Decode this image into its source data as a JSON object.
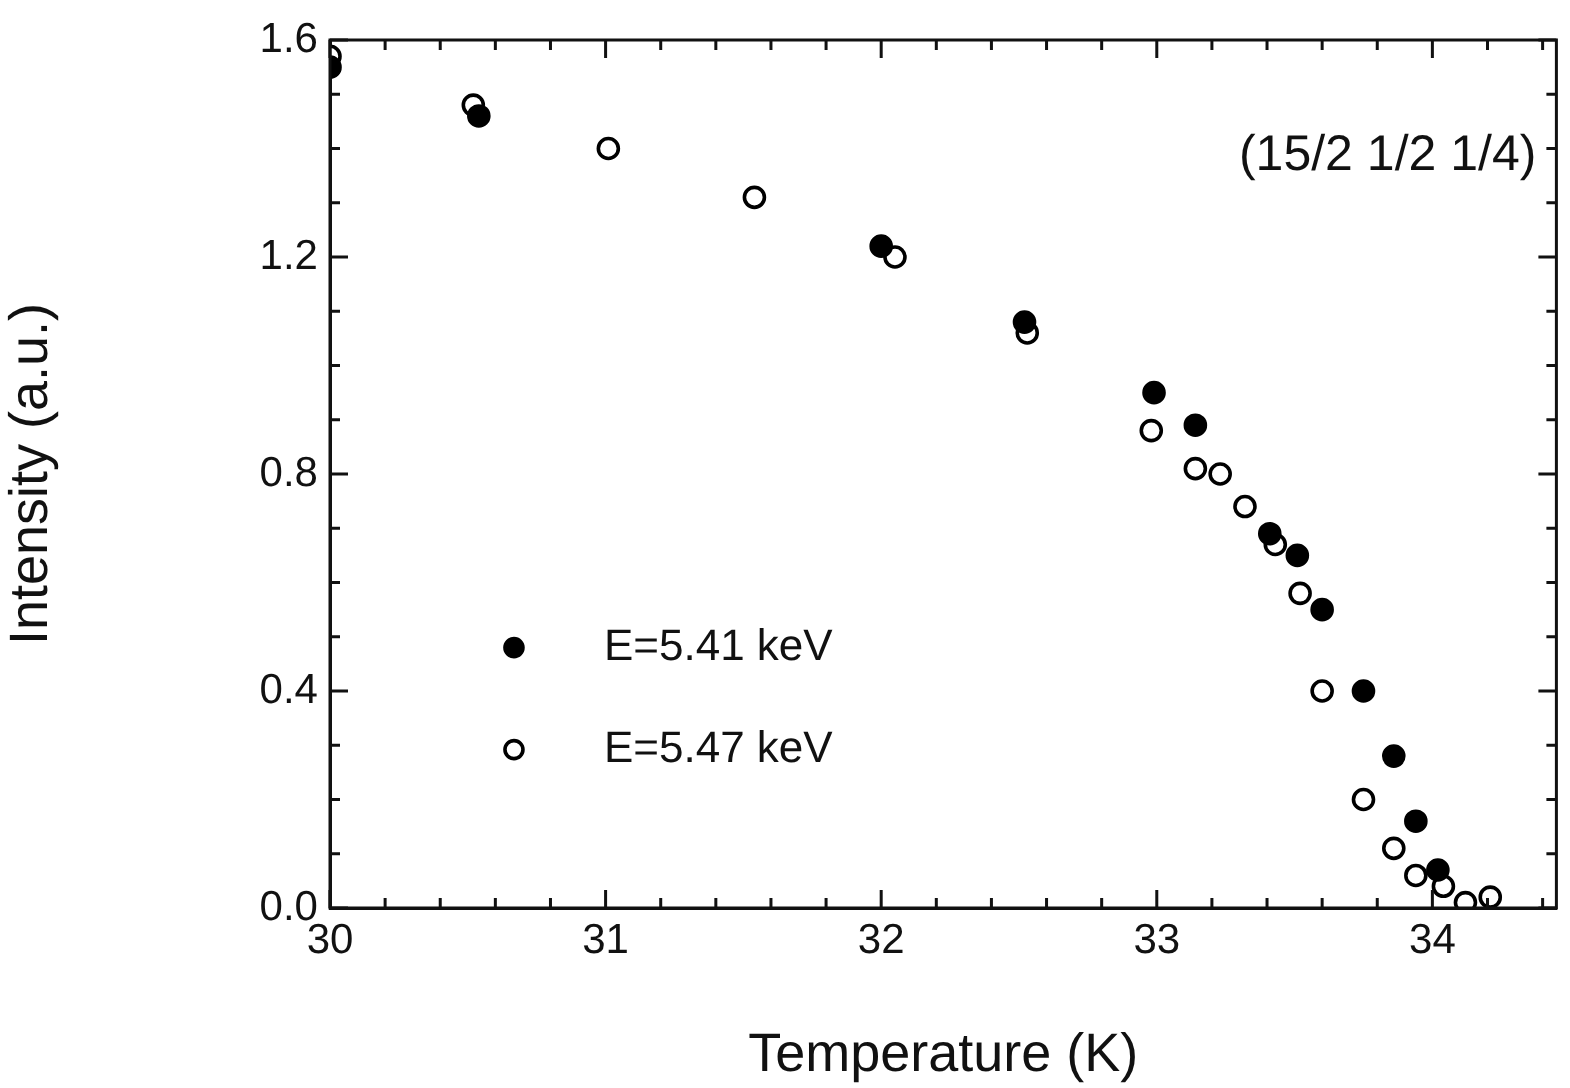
{
  "chart_data": {
    "type": "scatter",
    "xlabel": "Temperature (K)",
    "ylabel": "Intensity (a.u.)",
    "annotations": [
      "(15/2 1/2 1/4)"
    ],
    "xlim": [
      30,
      34.45
    ],
    "ylim": [
      0,
      1.6
    ],
    "xticks": [
      30,
      {
        "value": 30.2,
        "label": null
      },
      {
        "value": 30.4,
        "label": null
      },
      {
        "value": 30.6,
        "label": null
      },
      {
        "value": 30.8,
        "label": null
      },
      31,
      {
        "value": 31.2,
        "label": null
      },
      {
        "value": 31.4,
        "label": null
      },
      {
        "value": 31.6,
        "label": null
      },
      {
        "value": 31.8,
        "label": null
      },
      32,
      {
        "value": 32.2,
        "label": null
      },
      {
        "value": 32.4,
        "label": null
      },
      {
        "value": 32.6,
        "label": null
      },
      {
        "value": 32.8,
        "label": null
      },
      33,
      {
        "value": 33.2,
        "label": null
      },
      {
        "value": 33.4,
        "label": null
      },
      {
        "value": 33.6,
        "label": null
      },
      {
        "value": 33.8,
        "label": null
      },
      34,
      {
        "value": 34.2,
        "label": null
      },
      {
        "value": 34.4,
        "label": null
      }
    ],
    "yticks": [
      {
        "value": 0,
        "label": "0.0"
      },
      {
        "value": 0.1,
        "label": null
      },
      {
        "value": 0.2,
        "label": null
      },
      {
        "value": 0.3,
        "label": null
      },
      {
        "value": 0.4,
        "label": "0.4"
      },
      {
        "value": 0.5,
        "label": null
      },
      {
        "value": 0.6,
        "label": null
      },
      {
        "value": 0.7,
        "label": null
      },
      {
        "value": 0.8,
        "label": "0.8"
      },
      {
        "value": 0.9,
        "label": null
      },
      {
        "value": 1.0,
        "label": null
      },
      {
        "value": 1.1,
        "label": null
      },
      {
        "value": 1.2,
        "label": "1.2"
      },
      {
        "value": 1.3,
        "label": null
      },
      {
        "value": 1.4,
        "label": null
      },
      {
        "value": 1.5,
        "label": null
      },
      {
        "value": 1.6,
        "label": "1.6"
      }
    ],
    "grid": false,
    "legend": "bottom left",
    "marker": "circle",
    "series": [
      {
        "name": "E=5.41 keV",
        "color": "#000000",
        "x": [
          30.0,
          30.54,
          32.0,
          32.52,
          32.99,
          33.14,
          33.41,
          33.51,
          33.6,
          33.75,
          33.86,
          33.94,
          34.02
        ],
        "values": [
          1.55,
          1.46,
          1.22,
          1.08,
          0.95,
          0.89,
          0.69,
          0.65,
          0.55,
          0.4,
          0.28,
          0.16,
          0.07
        ]
      },
      {
        "name": "E=5.47 keV",
        "color": "#000000",
        "x": [
          30.0,
          30.52,
          31.01,
          31.54,
          32.05,
          32.53,
          32.98,
          33.14,
          33.23,
          33.32,
          33.43,
          33.52,
          33.6,
          33.75,
          33.86,
          33.94,
          34.04,
          34.12,
          34.21
        ],
        "values": [
          1.57,
          1.48,
          1.4,
          1.31,
          1.2,
          1.06,
          0.88,
          0.81,
          0.8,
          0.74,
          0.67,
          0.58,
          0.4,
          0.2,
          0.11,
          0.06,
          0.04,
          0.01,
          0.02
        ]
      }
    ]
  }
}
